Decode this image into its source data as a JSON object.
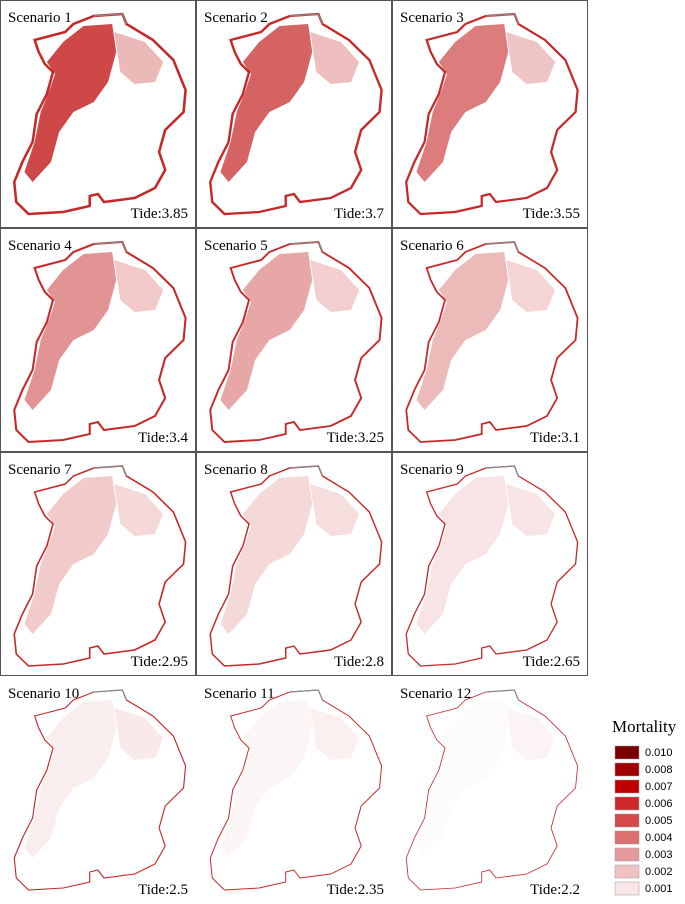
{
  "panels": [
    {
      "scenario": "Scenario 1",
      "tide": "Tide:3.85"
    },
    {
      "scenario": "Scenario 2",
      "tide": "Tide:3.7"
    },
    {
      "scenario": "Scenario 3",
      "tide": "Tide:3.55"
    },
    {
      "scenario": "Scenario 4",
      "tide": "Tide:3.4"
    },
    {
      "scenario": "Scenario 5",
      "tide": "Tide:3.25"
    },
    {
      "scenario": "Scenario 6",
      "tide": "Tide:3.1"
    },
    {
      "scenario": "Scenario 7",
      "tide": "Tide:2.95"
    },
    {
      "scenario": "Scenario 8",
      "tide": "Tide:2.8"
    },
    {
      "scenario": "Scenario 9",
      "tide": "Tide:2.65"
    },
    {
      "scenario": "Scenario 10",
      "tide": "Tide:2.5"
    },
    {
      "scenario": "Scenario 11",
      "tide": "Tide:2.35"
    },
    {
      "scenario": "Scenario 12",
      "tide": "Tide:2.2"
    }
  ],
  "legend": {
    "title": "Mortality",
    "items": [
      {
        "label": "0.010",
        "color": "#7a0000"
      },
      {
        "label": "0.008",
        "color": "#a00000"
      },
      {
        "label": "0.007",
        "color": "#c00000"
      },
      {
        "label": "0.006",
        "color": "#cc2a2a"
      },
      {
        "label": "0.005",
        "color": "#d44a4a"
      },
      {
        "label": "0.004",
        "color": "#dc7070"
      },
      {
        "label": "0.003",
        "color": "#e49a9a"
      },
      {
        "label": "0.002",
        "color": "#efc2c2"
      },
      {
        "label": "0.001",
        "color": "#fae6e6"
      }
    ]
  }
}
